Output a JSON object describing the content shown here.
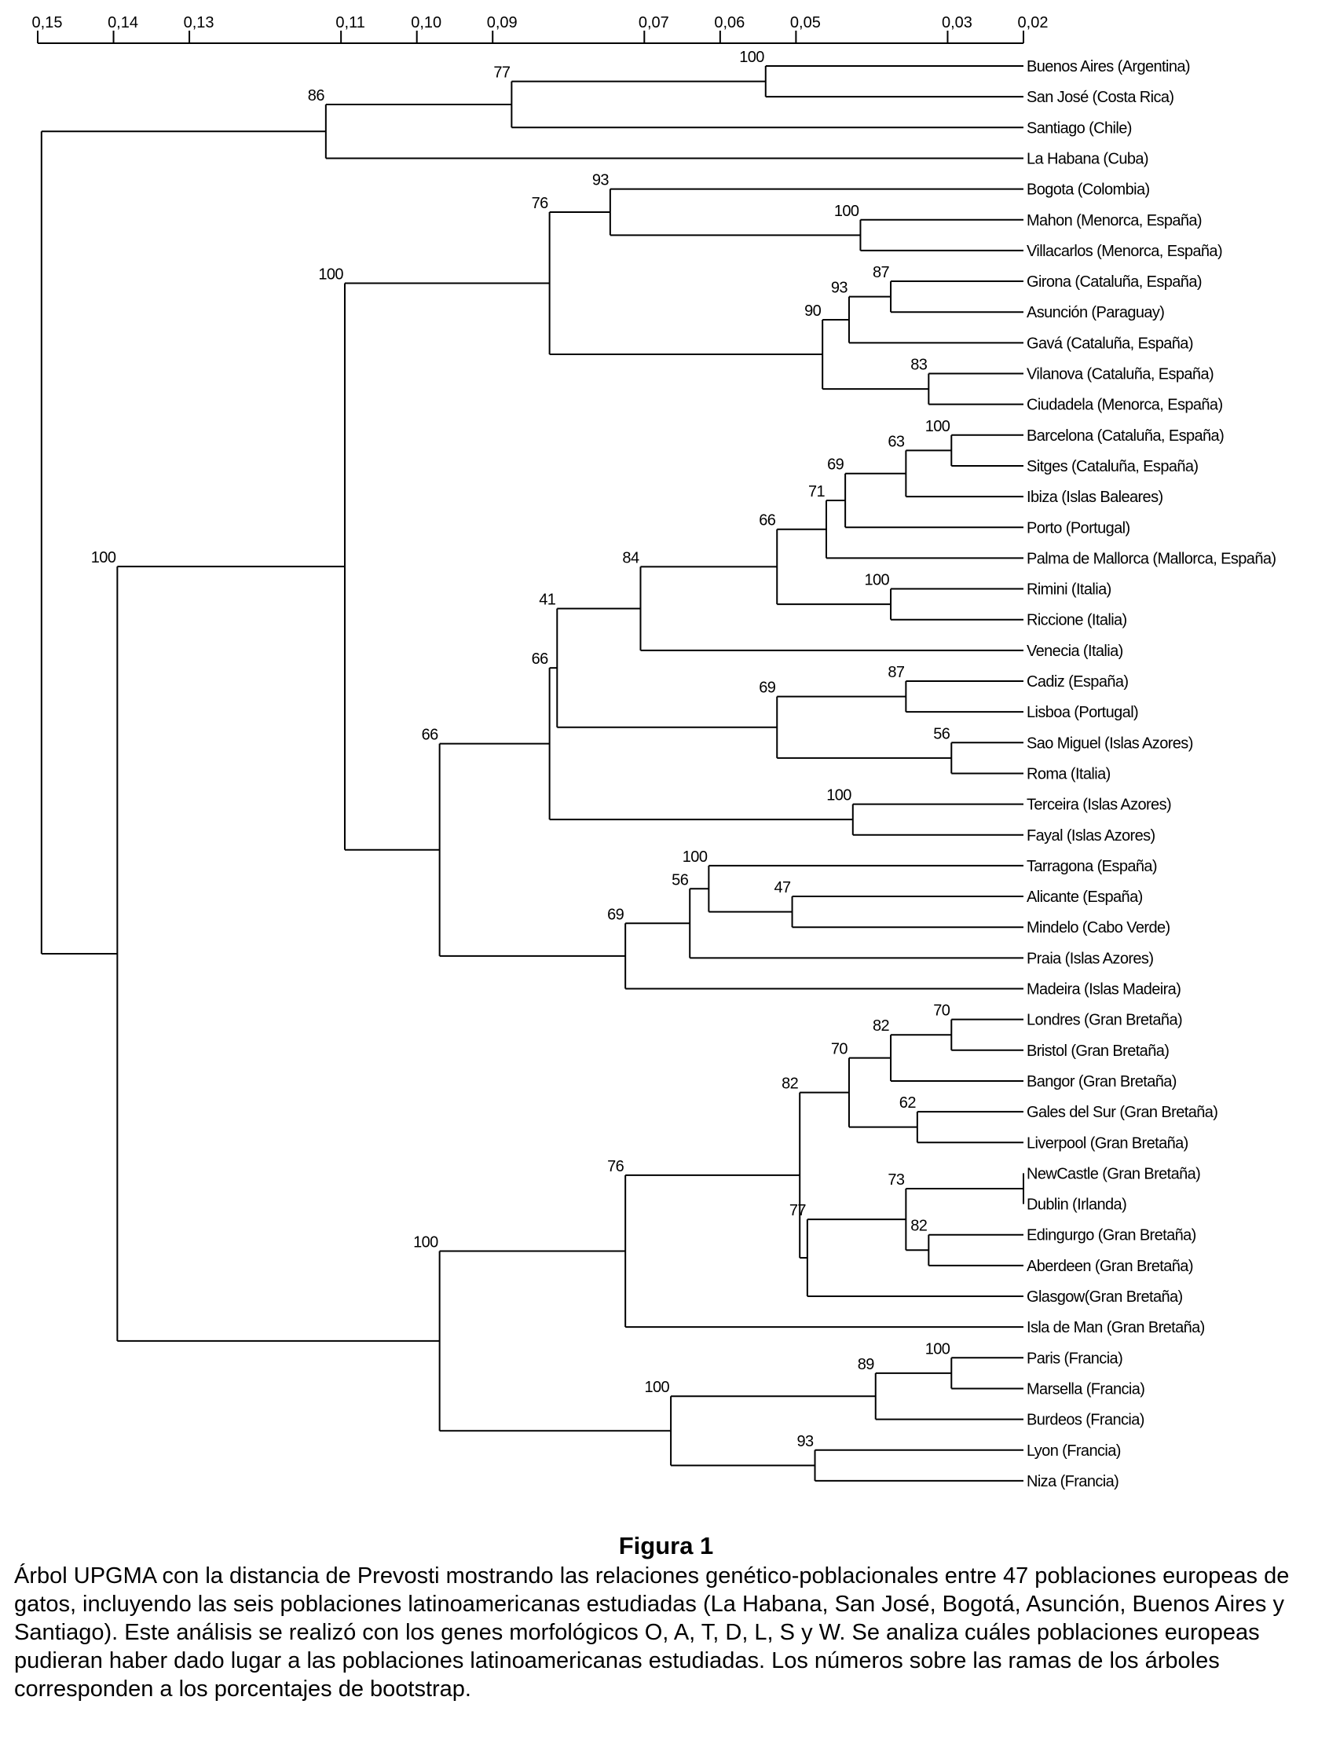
{
  "axis": {
    "ticks": [
      {
        "value": 0.15,
        "label": "0,15"
      },
      {
        "value": 0.14,
        "label": "0,14"
      },
      {
        "value": 0.13,
        "label": "0,13"
      },
      {
        "value": 0.11,
        "label": "0,11"
      },
      {
        "value": 0.1,
        "label": "0,10"
      },
      {
        "value": 0.09,
        "label": "0,09"
      },
      {
        "value": 0.07,
        "label": "0,07"
      },
      {
        "value": 0.06,
        "label": "0,06"
      },
      {
        "value": 0.05,
        "label": "0,05"
      },
      {
        "value": 0.03,
        "label": "0,03"
      },
      {
        "value": 0.02,
        "label": "0,02"
      }
    ]
  },
  "leaves": [
    "Buenos Aires (Argentina)",
    "San José (Costa Rica)",
    "Santiago (Chile)",
    "La Habana (Cuba)",
    "Bogota (Colombia)",
    "Mahon (Menorca, España)",
    "Villacarlos (Menorca, España)",
    "Girona (Cataluña, España)",
    "Asunción (Paraguay)",
    "Gavá (Cataluña, España)",
    "Vilanova (Cataluña, España)",
    "Ciudadela (Menorca, España)",
    "Barcelona (Cataluña, España)",
    "Sitges (Cataluña, España)",
    "Ibiza (Islas Baleares)",
    "Porto (Portugal)",
    "Palma de Mallorca (Mallorca, España)",
    "Rimini (Italia)",
    "Riccione (Italia)",
    "Venecia (Italia)",
    "Cadiz (España)",
    "Lisboa (Portugal)",
    "Sao Miguel (Islas Azores)",
    "Roma (Italia)",
    "Terceira (Islas Azores)",
    "Fayal (Islas Azores)",
    "Tarragona (España)",
    "Alicante (España)",
    "Mindelo (Cabo Verde)",
    "Praia (Islas Azores)",
    "Madeira (Islas Madeira)",
    "Londres (Gran Bretaña)",
    "Bristol (Gran Bretaña)",
    "Bangor (Gran Bretaña)",
    "Gales del Sur (Gran Bretaña)",
    "Liverpool (Gran Bretaña)",
    "NewCastle (Gran Bretaña)",
    "Dublin (Irlanda)",
    "Edingurgo (Gran Bretaña)",
    "Aberdeen (Gran Bretaña)",
    "Glasgow(Gran Bretaña)",
    "Isla de Man (Gran Bretaña)",
    "Paris (Francia)",
    "Marsella (Francia)",
    "Burdeos (Francia)",
    "Lyon (Francia)",
    "Niza (Francia)"
  ],
  "nodes": [
    {
      "id": "n1",
      "children": [
        0,
        1
      ],
      "height": 0.054,
      "bootstrap": "100"
    },
    {
      "id": "n2",
      "children": [
        "n1",
        2
      ],
      "height": 0.0875,
      "bootstrap": "77"
    },
    {
      "id": "n3",
      "children": [
        "n2",
        3
      ],
      "height": 0.112,
      "bootstrap": "86"
    },
    {
      "id": "n4",
      "children": [
        5,
        6
      ],
      "height": 0.0415,
      "bootstrap": "100"
    },
    {
      "id": "n5",
      "children": [
        4,
        "n4"
      ],
      "height": 0.0745,
      "bootstrap": "93"
    },
    {
      "id": "n6",
      "children": [
        7,
        8
      ],
      "height": 0.0375,
      "bootstrap": "87"
    },
    {
      "id": "n7",
      "children": [
        "n6",
        9
      ],
      "height": 0.043,
      "bootstrap": "93"
    },
    {
      "id": "n8",
      "children": [
        10,
        11
      ],
      "height": 0.0325,
      "bootstrap": "83"
    },
    {
      "id": "n9",
      "children": [
        "n7",
        "n8"
      ],
      "height": 0.0465,
      "bootstrap": "90"
    },
    {
      "id": "n10",
      "children": [
        "n5",
        "n9"
      ],
      "height": 0.0825,
      "bootstrap": "76"
    },
    {
      "id": "n11",
      "children": [
        12,
        13
      ],
      "height": 0.0295,
      "bootstrap": "100"
    },
    {
      "id": "n12",
      "children": [
        "n11",
        14
      ],
      "height": 0.0355,
      "bootstrap": "63"
    },
    {
      "id": "n13",
      "children": [
        "n12",
        15
      ],
      "height": 0.0435,
      "bootstrap": "69"
    },
    {
      "id": "n14",
      "children": [
        "n13",
        16
      ],
      "height": 0.046,
      "bootstrap": "71"
    },
    {
      "id": "n15",
      "children": [
        17,
        18
      ],
      "height": 0.0375,
      "bootstrap": "100"
    },
    {
      "id": "n16",
      "children": [
        "n14",
        "n15"
      ],
      "height": 0.0525,
      "bootstrap": "66"
    },
    {
      "id": "n17",
      "children": [
        "n16",
        19
      ],
      "height": 0.0705,
      "bootstrap": "84"
    },
    {
      "id": "n18",
      "children": [
        20,
        21
      ],
      "height": 0.0355,
      "bootstrap": "87"
    },
    {
      "id": "n19",
      "children": [
        22,
        23
      ],
      "height": 0.0295,
      "bootstrap": "56"
    },
    {
      "id": "n20",
      "children": [
        "n18",
        "n19"
      ],
      "height": 0.0525,
      "bootstrap": "69"
    },
    {
      "id": "n21",
      "children": [
        "n17",
        "n20"
      ],
      "height": 0.0815,
      "bootstrap": "41"
    },
    {
      "id": "n22",
      "children": [
        24,
        25
      ],
      "height": 0.0425,
      "bootstrap": "100"
    },
    {
      "id": "n23",
      "children": [
        "n21",
        "n22"
      ],
      "height": 0.0825,
      "bootstrap": "66"
    },
    {
      "id": "n24",
      "children": [
        27,
        28
      ],
      "height": 0.0505,
      "bootstrap": "47"
    },
    {
      "id": "n25",
      "children": [
        26,
        "n24"
      ],
      "height": 0.0615,
      "bootstrap": "100"
    },
    {
      "id": "n26",
      "children": [
        "n25",
        29
      ],
      "height": 0.064,
      "bootstrap": "56"
    },
    {
      "id": "n27",
      "children": [
        "n26",
        30
      ],
      "height": 0.0725,
      "bootstrap": "69"
    },
    {
      "id": "n28",
      "children": [
        "n23",
        "n27"
      ],
      "height": 0.097,
      "bootstrap": "66"
    },
    {
      "id": "n29",
      "children": [
        "n10",
        "n28"
      ],
      "height": 0.1095,
      "bootstrap": "100"
    },
    {
      "id": "n30",
      "children": [
        31,
        32
      ],
      "height": 0.0295,
      "bootstrap": "70"
    },
    {
      "id": "n31",
      "children": [
        "n30",
        33
      ],
      "height": 0.0375,
      "bootstrap": "82"
    },
    {
      "id": "n32",
      "children": [
        34,
        35
      ],
      "height": 0.034,
      "bootstrap": "62"
    },
    {
      "id": "n33",
      "children": [
        "n31",
        "n32"
      ],
      "height": 0.043,
      "bootstrap": "70"
    },
    {
      "id": "n34",
      "children": [
        36,
        37
      ],
      "height": 0.02,
      "bootstrap": ""
    },
    {
      "id": "n35",
      "children": [
        38,
        39
      ],
      "height": 0.0325,
      "bootstrap": "82"
    },
    {
      "id": "n36",
      "children": [
        "n34",
        "n35"
      ],
      "height": 0.0355,
      "bootstrap": "73"
    },
    {
      "id": "n37",
      "children": [
        "n36",
        40
      ],
      "height": 0.0485,
      "bootstrap": "77"
    },
    {
      "id": "n38",
      "children": [
        "n33",
        "n37"
      ],
      "height": 0.0495,
      "bootstrap": "82"
    },
    {
      "id": "n39",
      "children": [
        "n38",
        41
      ],
      "height": 0.0725,
      "bootstrap": "76"
    },
    {
      "id": "n40",
      "children": [
        42,
        43
      ],
      "height": 0.0295,
      "bootstrap": "100"
    },
    {
      "id": "n41",
      "children": [
        "n40",
        44
      ],
      "height": 0.0395,
      "bootstrap": "89"
    },
    {
      "id": "n42",
      "children": [
        45,
        46
      ],
      "height": 0.0475,
      "bootstrap": "93"
    },
    {
      "id": "n43",
      "children": [
        "n41",
        "n42"
      ],
      "height": 0.0665,
      "bootstrap": "100"
    },
    {
      "id": "n44",
      "children": [
        "n39",
        "n43"
      ],
      "height": 0.097,
      "bootstrap": "100"
    },
    {
      "id": "n45",
      "children": [
        "n29",
        "n44"
      ],
      "height": 0.1395,
      "bootstrap": "100"
    },
    {
      "id": "n46",
      "children": [
        "n3",
        "n45"
      ],
      "height": 0.1495,
      "bootstrap": ""
    }
  ],
  "caption": {
    "title": "Figura 1",
    "text": "Árbol UPGMA con la distancia de Prevosti mostrando las relaciones genético-poblacionales entre 47 poblaciones europeas de gatos, incluyendo las seis poblaciones latinoamericanas estudiadas (La Habana, San José, Bogotá, Asunción, Buenos Aires y Santiago). Este análisis se realizó con los genes morfológicos O, A, T, D, L, S y W.  Se analiza cuáles poblaciones europeas pudieran haber dado lugar a las poblaciones latinoamericanas estudiadas. Los números sobre las ramas de los árboles corresponden a los porcentajes de bootstrap."
  }
}
